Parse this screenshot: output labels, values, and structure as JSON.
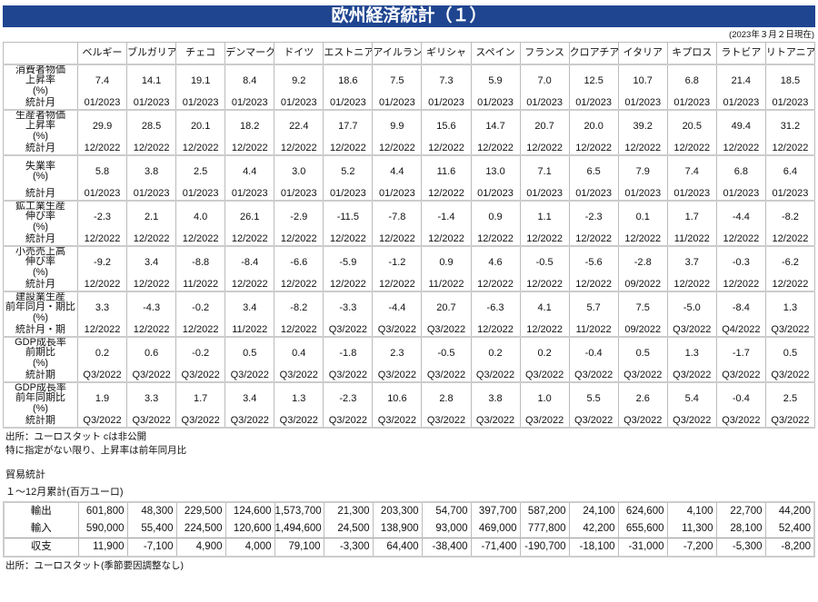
{
  "title": "欧州経済統計（１）",
  "as_of": "(2023年３月２日現在)",
  "countries": [
    "ベルギー",
    "ブルガリア",
    "チェコ",
    "デンマーク",
    "ドイツ",
    "エストニア",
    "アイルランド",
    "ギリシャ",
    "スペイン",
    "フランス",
    "クロアチア",
    "イタリア",
    "キプロス",
    "ラトビア",
    "リトアニア"
  ],
  "indicators": [
    {
      "label": [
        "消費者物価",
        "上昇率",
        "(%)"
      ],
      "period_label": "統計月",
      "values": [
        "7.4",
        "14.1",
        "19.1",
        "8.4",
        "9.2",
        "18.6",
        "7.5",
        "7.3",
        "5.9",
        "7.0",
        "12.5",
        "10.7",
        "6.8",
        "21.4",
        "18.5"
      ],
      "periods": [
        "01/2023",
        "01/2023",
        "01/2023",
        "01/2023",
        "01/2023",
        "01/2023",
        "01/2023",
        "01/2023",
        "01/2023",
        "01/2023",
        "01/2023",
        "01/2023",
        "01/2023",
        "01/2023",
        "01/2023"
      ]
    },
    {
      "label": [
        "生産者物価",
        "上昇率",
        "(%)"
      ],
      "period_label": "統計月",
      "values": [
        "29.9",
        "28.5",
        "20.1",
        "18.2",
        "22.4",
        "17.7",
        "9.9",
        "15.6",
        "14.7",
        "20.7",
        "20.0",
        "39.2",
        "20.5",
        "49.4",
        "31.2"
      ],
      "periods": [
        "12/2022",
        "12/2022",
        "12/2022",
        "12/2022",
        "12/2022",
        "12/2022",
        "12/2022",
        "12/2022",
        "12/2022",
        "12/2022",
        "12/2022",
        "12/2022",
        "12/2022",
        "12/2022",
        "12/2022"
      ]
    },
    {
      "label": [
        "失業率",
        "(%)"
      ],
      "period_label": "統計月",
      "values": [
        "5.8",
        "3.8",
        "2.5",
        "4.4",
        "3.0",
        "5.2",
        "4.4",
        "11.6",
        "13.0",
        "7.1",
        "6.5",
        "7.9",
        "7.4",
        "6.8",
        "6.4"
      ],
      "periods": [
        "01/2023",
        "01/2023",
        "01/2023",
        "01/2023",
        "01/2023",
        "01/2023",
        "01/2023",
        "12/2022",
        "01/2023",
        "01/2023",
        "01/2023",
        "01/2023",
        "01/2023",
        "01/2023",
        "01/2023"
      ]
    },
    {
      "label": [
        "鉱工業生産",
        "伸び率",
        "(%)"
      ],
      "period_label": "統計月",
      "values": [
        "-2.3",
        "2.1",
        "4.0",
        "26.1",
        "-2.9",
        "-11.5",
        "-7.8",
        "-1.4",
        "0.9",
        "1.1",
        "-2.3",
        "0.1",
        "1.7",
        "-4.4",
        "-8.2"
      ],
      "periods": [
        "12/2022",
        "12/2022",
        "12/2022",
        "12/2022",
        "12/2022",
        "12/2022",
        "12/2022",
        "12/2022",
        "12/2022",
        "12/2022",
        "12/2022",
        "12/2022",
        "11/2022",
        "12/2022",
        "12/2022"
      ]
    },
    {
      "label": [
        "小売売上高",
        "伸び率",
        "(%)"
      ],
      "period_label": "統計月",
      "values": [
        "-9.2",
        "3.4",
        "-8.8",
        "-8.4",
        "-6.6",
        "-5.9",
        "-1.2",
        "0.9",
        "4.6",
        "-0.5",
        "-5.6",
        "-2.8",
        "3.7",
        "-0.3",
        "-6.2"
      ],
      "periods": [
        "12/2022",
        "12/2022",
        "11/2022",
        "12/2022",
        "12/2022",
        "12/2022",
        "12/2022",
        "11/2022",
        "12/2022",
        "12/2022",
        "12/2022",
        "09/2022",
        "12/2022",
        "12/2022",
        "12/2022"
      ]
    },
    {
      "label": [
        "建設業生産",
        "前年同月・期比",
        "(%)"
      ],
      "period_label": "統計月・期",
      "values": [
        "3.3",
        "-4.3",
        "-0.2",
        "3.4",
        "-8.2",
        "-3.3",
        "-4.4",
        "20.7",
        "-6.3",
        "4.1",
        "5.7",
        "7.5",
        "-5.0",
        "-8.4",
        "1.3"
      ],
      "periods": [
        "12/2022",
        "12/2022",
        "12/2022",
        "11/2022",
        "12/2022",
        "Q3/2022",
        "Q3/2022",
        "Q3/2022",
        "12/2022",
        "12/2022",
        "11/2022",
        "09/2022",
        "Q3/2022",
        "Q4/2022",
        "Q3/2022"
      ]
    },
    {
      "label": [
        "GDP成長率",
        "前期比",
        "(%)"
      ],
      "period_label": "統計期",
      "values": [
        "0.2",
        "0.6",
        "-0.2",
        "0.5",
        "0.4",
        "-1.8",
        "2.3",
        "-0.5",
        "0.2",
        "0.2",
        "-0.4",
        "0.5",
        "1.3",
        "-1.7",
        "0.5"
      ],
      "periods": [
        "Q3/2022",
        "Q3/2022",
        "Q3/2022",
        "Q3/2022",
        "Q3/2022",
        "Q3/2022",
        "Q3/2022",
        "Q3/2022",
        "Q3/2022",
        "Q3/2022",
        "Q3/2022",
        "Q3/2022",
        "Q3/2022",
        "Q3/2022",
        "Q3/2022"
      ]
    },
    {
      "label": [
        "GDP成長率",
        "前年同期比",
        "(%)"
      ],
      "period_label": "統計期",
      "values": [
        "1.9",
        "3.3",
        "1.7",
        "3.4",
        "1.3",
        "-2.3",
        "10.6",
        "2.8",
        "3.8",
        "1.0",
        "5.5",
        "2.6",
        "5.4",
        "-0.4",
        "2.5"
      ],
      "periods": [
        "Q3/2022",
        "Q3/2022",
        "Q3/2022",
        "Q3/2022",
        "Q3/2022",
        "Q3/2022",
        "Q3/2022",
        "Q3/2022",
        "Q3/2022",
        "Q3/2022",
        "Q3/2022",
        "Q3/2022",
        "Q3/2022",
        "Q3/2022",
        "Q3/2022"
      ]
    }
  ],
  "notes": {
    "source": "出所：ユーロスタット cは非公開",
    "rate_note": "特に指定がない限り、上昇率は前年同月比"
  },
  "trade": {
    "heading": "貿易統計",
    "subheading": "１～12月累計(百万ユーロ)",
    "rows": [
      {
        "label": "輸出",
        "values": [
          "601,800",
          "48,300",
          "229,500",
          "124,600",
          "1,573,700",
          "21,300",
          "203,300",
          "54,700",
          "397,700",
          "587,200",
          "24,100",
          "624,600",
          "4,100",
          "22,700",
          "44,200"
        ]
      },
      {
        "label": "輸入",
        "values": [
          "590,000",
          "55,400",
          "224,500",
          "120,600",
          "1,494,600",
          "24,500",
          "138,900",
          "93,000",
          "469,000",
          "777,800",
          "42,200",
          "655,600",
          "11,300",
          "28,100",
          "52,400"
        ]
      },
      {
        "label": "収支",
        "values": [
          "11,900",
          "-7,100",
          "4,900",
          "4,000",
          "79,100",
          "-3,300",
          "64,400",
          "-38,400",
          "-71,400",
          "-190,700",
          "-18,100",
          "-31,000",
          "-7,200",
          "-5,300",
          "-8,200"
        ]
      }
    ],
    "source": "出所：ユーロスタット(季節要因調整なし)"
  },
  "colors": {
    "title_bar": "#1f4590"
  }
}
